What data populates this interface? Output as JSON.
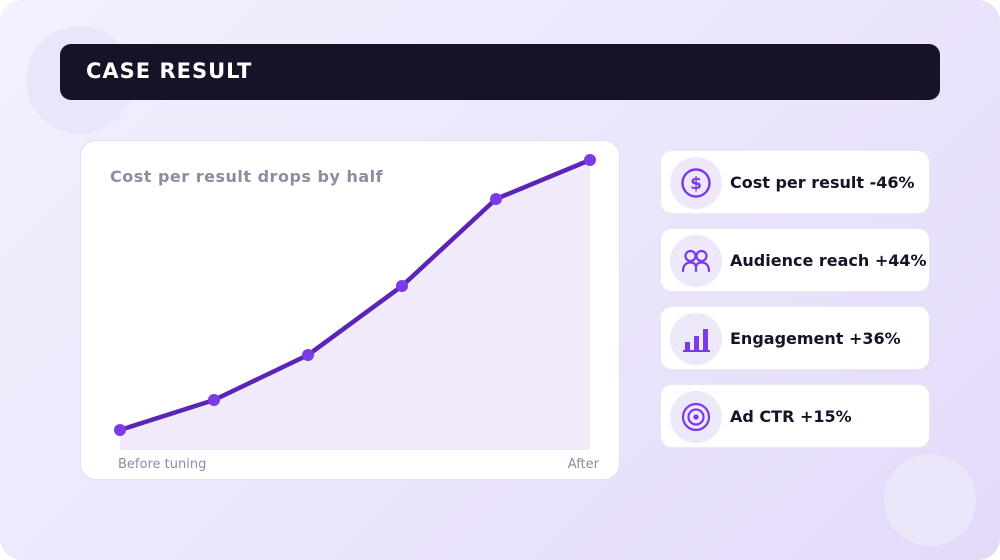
{
  "header": {
    "title": "CASE RESULT"
  },
  "colors": {
    "accent": "#7a3be6",
    "accent_dark": "#5b24b8",
    "area_fill": "#f1eafb",
    "title_bar": "#161326",
    "muted_text": "#8f8ba3"
  },
  "chart_data": {
    "type": "line",
    "title": "Cost per result drops by half",
    "x_labels": {
      "start": "Before tuning",
      "end": "After"
    },
    "x": [
      1,
      2,
      3,
      4,
      5,
      6
    ],
    "series": [
      {
        "values": [
          0,
          10,
          25,
          48,
          77,
          90
        ]
      }
    ],
    "ylim": [
      0,
      90
    ],
    "grid": false,
    "area_under_line": true
  },
  "metrics": [
    {
      "label": "Cost per result -46%",
      "icon": "dollar-icon"
    },
    {
      "label": "Audience reach +44%",
      "icon": "people-icon"
    },
    {
      "label": "Engagement +36%",
      "icon": "bar-chart-icon"
    },
    {
      "label": "Ad CTR +15%",
      "icon": "target-icon"
    }
  ]
}
